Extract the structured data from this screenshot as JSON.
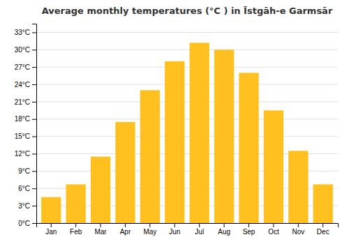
{
  "chart_data": {
    "type": "bar",
    "title": "Average monthly temperatures (°C ) in Īstgāh-e Garmsār",
    "categories": [
      "Jan",
      "Feb",
      "Mar",
      "Apr",
      "May",
      "Jun",
      "Jul",
      "Aug",
      "Sep",
      "Oct",
      "Nov",
      "Dec"
    ],
    "values": [
      4.5,
      6.7,
      11.5,
      17.5,
      23.0,
      28.0,
      31.2,
      30.0,
      26.0,
      19.5,
      12.5,
      6.7
    ],
    "color": "#FFC020",
    "ylim": [
      0,
      34.5
    ],
    "yticks": [
      {
        "value": 0,
        "label": "0°C"
      },
      {
        "value": 3,
        "label": "3°C"
      },
      {
        "value": 6,
        "label": "6°C"
      },
      {
        "value": 9,
        "label": "9°C"
      },
      {
        "value": 12,
        "label": "12°C"
      },
      {
        "value": 15,
        "label": "15°C"
      },
      {
        "value": 18,
        "label": "18°C"
      },
      {
        "value": 21,
        "label": "21°C"
      },
      {
        "value": 24,
        "label": "24°C"
      },
      {
        "value": 27,
        "label": "27°C"
      },
      {
        "value": 30,
        "label": "30°C"
      },
      {
        "value": 33,
        "label": "33°C"
      }
    ],
    "grid": true
  }
}
